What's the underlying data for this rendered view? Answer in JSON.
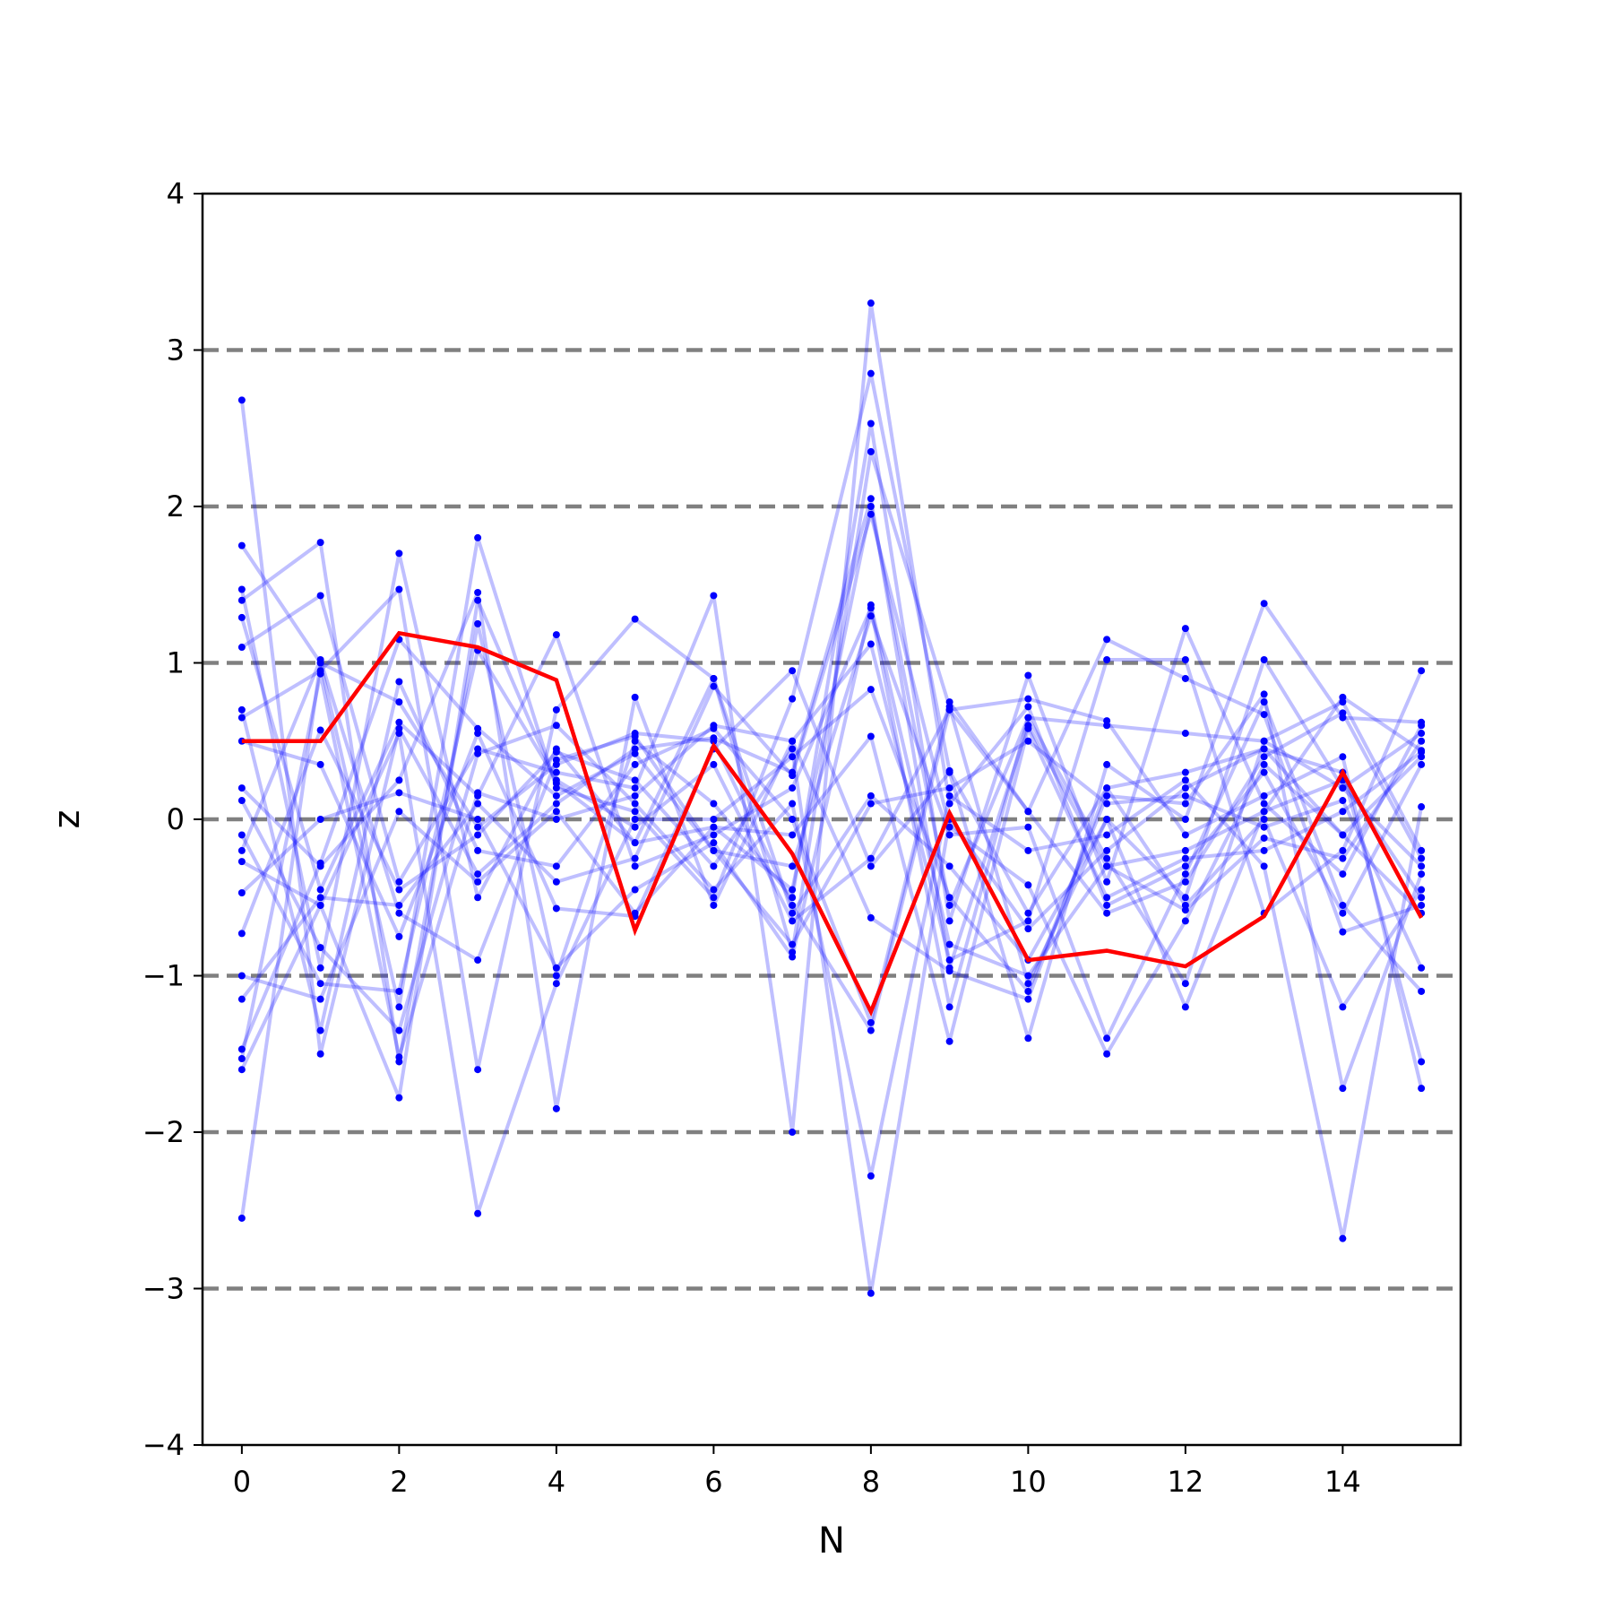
{
  "chart_data": {
    "type": "line",
    "title": "",
    "xlabel": "N",
    "ylabel": "z",
    "xlim": [
      -0.5,
      15.5
    ],
    "ylim": [
      -4,
      4
    ],
    "xticks": [
      0,
      2,
      4,
      6,
      8,
      10,
      12,
      14
    ],
    "yticks": [
      -4,
      -3,
      -2,
      -1,
      0,
      1,
      2,
      3,
      4
    ],
    "xtick_labels": [
      "0",
      "2",
      "4",
      "6",
      "8",
      "10",
      "12",
      "14"
    ],
    "ytick_labels": [
      "−4",
      "−3",
      "−2",
      "−1",
      "0",
      "1",
      "2",
      "3",
      "4"
    ],
    "reference_lines": [
      -3,
      -2,
      -1,
      0,
      1,
      2,
      3
    ],
    "grid": false,
    "legend": "none",
    "colors": {
      "highlight": "#ff0000",
      "background_series": "#0000ff",
      "reference_line": "#808080",
      "frame": "#000000"
    },
    "x": [
      0,
      1,
      2,
      3,
      4,
      5,
      6,
      7,
      8,
      9,
      10,
      11,
      12,
      13,
      14,
      15
    ],
    "highlight_series": {
      "values": [
        0.5,
        0.5,
        1.19,
        1.1,
        0.89,
        -0.71,
        0.47,
        -0.22,
        -1.23,
        0.04,
        -0.9,
        -0.84,
        -0.94,
        -0.62,
        0.3,
        -0.63
      ]
    },
    "series": [
      {
        "values": [
          2.68,
          -1.5,
          0.58,
          -0.35,
          0.1,
          0.45,
          0.52,
          0.3,
          2.05,
          -0.95,
          0.6,
          -0.3,
          -0.2,
          0.05,
          0.25,
          -0.5
        ]
      },
      {
        "values": [
          1.75,
          1.0,
          -1.2,
          1.8,
          0.2,
          0.05,
          -0.5,
          0.77,
          2.85,
          0.31,
          -0.6,
          0.2,
          0.3,
          0.45,
          -0.1,
          0.4
        ]
      },
      {
        "values": [
          1.47,
          -0.95,
          1.7,
          -0.5,
          0.45,
          -0.15,
          0.9,
          -0.85,
          2.35,
          0.72,
          -1.05,
          0.0,
          -0.5,
          1.02,
          0.2,
          -0.3
        ]
      },
      {
        "values": [
          1.4,
          1.77,
          -1.55,
          1.25,
          -1.0,
          0.5,
          0.1,
          -0.5,
          2.53,
          -0.65,
          0.92,
          -0.4,
          1.22,
          0.1,
          -0.35,
          0.6
        ]
      },
      {
        "values": [
          1.29,
          -0.45,
          0.62,
          0.15,
          1.18,
          -0.3,
          -0.1,
          0.2,
          1.35,
          -1.2,
          0.65,
          0.6,
          0.55,
          0.5,
          0.75,
          -0.2
        ]
      },
      {
        "values": [
          1.1,
          1.43,
          -0.4,
          0.45,
          0.3,
          0.2,
          1.43,
          -2.0,
          3.3,
          0.1,
          0.72,
          -0.55,
          -0.3,
          0.3,
          -0.6,
          0.35
        ]
      },
      {
        "values": [
          0.7,
          -1.35,
          0.88,
          -0.2,
          -0.3,
          0.35,
          0.58,
          0.0,
          -1.3,
          0.75,
          0.05,
          1.15,
          0.9,
          0.67,
          -0.72,
          -0.55
        ]
      },
      {
        "values": [
          0.65,
          0.95,
          1.47,
          -1.6,
          0.7,
          1.28,
          0.9,
          -0.6,
          0.15,
          -0.3,
          -0.9,
          0.0,
          -1.2,
          0.05,
          0.78,
          0.44
        ]
      },
      {
        "values": [
          0.5,
          0.35,
          -0.75,
          0.55,
          -0.57,
          -0.62,
          0.45,
          0.95,
          -0.3,
          0.3,
          -1.4,
          0.35,
          0.0,
          1.38,
          0.65,
          0.62
        ]
      },
      {
        "values": [
          0.2,
          -0.3,
          0.25,
          1.45,
          -1.85,
          0.78,
          -0.55,
          0.5,
          1.12,
          -0.9,
          -0.65,
          1.02,
          1.02,
          -0.6,
          -0.2,
          0.95
        ]
      },
      {
        "values": [
          0.12,
          -0.82,
          -1.35,
          0.42,
          0.6,
          0.1,
          -0.45,
          0.1,
          -2.28,
          0.15,
          -0.2,
          -0.1,
          0.25,
          -0.3,
          -2.68,
          0.08
        ]
      },
      {
        "values": [
          -0.1,
          -1.05,
          -1.1,
          1.08,
          0.25,
          -0.05,
          0.35,
          -0.65,
          -0.25,
          0.7,
          0.77,
          0.63,
          -0.1,
          0.15,
          0.4,
          -1.72
        ]
      },
      {
        "values": [
          -0.2,
          1.02,
          -0.6,
          -0.9,
          0.38,
          0.53,
          -0.2,
          -0.3,
          1.3,
          -0.1,
          -0.05,
          -1.4,
          -0.35,
          0.75,
          -0.55,
          -1.1
        ]
      },
      {
        "values": [
          -0.27,
          -0.55,
          0.55,
          -2.52,
          -1.05,
          0.0,
          0.0,
          0.4,
          0.83,
          -0.5,
          -1.1,
          0.15,
          0.1,
          0.8,
          -1.72,
          -0.35
        ]
      },
      {
        "values": [
          -0.47,
          0.0,
          0.17,
          0.0,
          -0.95,
          -0.45,
          -0.15,
          -0.88,
          1.37,
          -0.8,
          -1.0,
          -0.3,
          -0.58,
          -0.12,
          -0.25,
          0.5
        ]
      },
      {
        "values": [
          -0.73,
          0.57,
          -0.45,
          -0.1,
          0.43,
          0.25,
          -0.3,
          0.45,
          -3.03,
          0.0,
          -0.7,
          -0.2,
          0.2,
          0.45,
          0.3,
          -1.55
        ]
      },
      {
        "values": [
          -1.0,
          -1.15,
          0.05,
          -0.4,
          0.05,
          -0.6,
          -0.05,
          -0.1,
          0.53,
          -1.42,
          0.58,
          -0.5,
          -0.25,
          -0.2,
          0.05,
          0.43
        ]
      },
      {
        "values": [
          -1.15,
          -0.5,
          -0.55,
          0.1,
          -0.4,
          -0.25,
          0.85,
          0.28,
          1.95,
          -0.05,
          -0.42,
          -1.5,
          -0.65,
          0.35,
          -0.1,
          -0.6
        ]
      },
      {
        "values": [
          -1.47,
          -0.28,
          1.15,
          0.58,
          0.15,
          0.42,
          -0.2,
          -0.8,
          0.1,
          0.2,
          0.5,
          0.1,
          0.15,
          -0.05,
          0.12,
          -0.95
        ]
      },
      {
        "values": [
          -1.53,
          0.93,
          -1.52,
          0.17,
          0.0,
          0.15,
          0.6,
          0.5,
          -0.63,
          -0.97,
          -1.15,
          0.2,
          -0.55,
          0.0,
          -1.2,
          -0.45
        ]
      },
      {
        "values": [
          -1.6,
          -0.55,
          -1.78,
          1.4,
          0.23,
          -0.15,
          -0.05,
          -0.45,
          2.0,
          -0.55,
          0.65,
          -0.25,
          -1.05,
          0.5,
          0.2,
          0.55
        ]
      },
      {
        "values": [
          -2.55,
          1.0,
          0.75,
          -0.05,
          0.35,
          0.55,
          0.5,
          -0.55,
          -1.35,
          0.7,
          0.05,
          -0.6,
          -0.4,
          0.4,
          0.68,
          -0.25
        ]
      }
    ]
  }
}
